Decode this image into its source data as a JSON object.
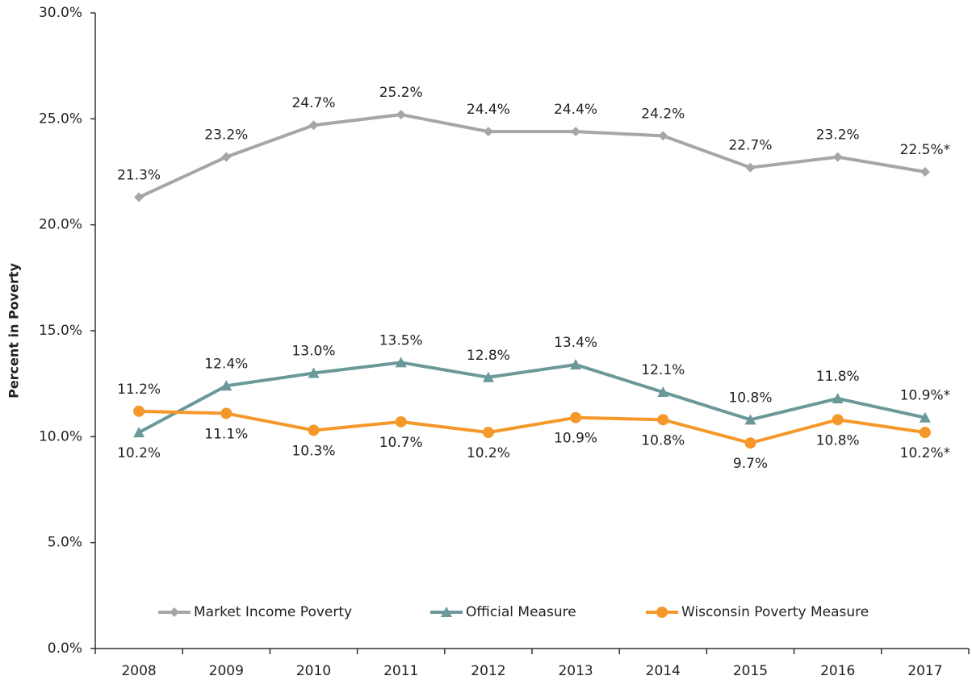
{
  "chart_data": {
    "type": "line",
    "y_label": "Percent in Poverty",
    "categories": [
      "2008",
      "2009",
      "2010",
      "2011",
      "2012",
      "2013",
      "2014",
      "2015",
      "2016",
      "2017"
    ],
    "ylim": [
      0,
      30
    ],
    "yticks": [
      {
        "value": 0,
        "label": "0.0%"
      },
      {
        "value": 5,
        "label": "5.0%"
      },
      {
        "value": 10,
        "label": "10.0%"
      },
      {
        "value": 15,
        "label": "15.0%"
      },
      {
        "value": 20,
        "label": "20.0%"
      },
      {
        "value": 25,
        "label": "25.0%"
      },
      {
        "value": 30,
        "label": "30.0%"
      }
    ],
    "legend": "bottom",
    "series": [
      {
        "name": "Market Income Poverty",
        "color": "#a6a6a6",
        "marker": "diamond",
        "values": [
          21.3,
          23.2,
          24.7,
          25.2,
          24.4,
          24.4,
          24.2,
          22.7,
          23.2,
          22.5
        ],
        "value_labels": [
          "21.3%",
          "23.2%",
          "24.7%",
          "25.2%",
          "24.4%",
          "24.4%",
          "24.2%",
          "22.7%",
          "23.2%",
          "22.5%*"
        ]
      },
      {
        "name": "Official Measure",
        "color": "#6b9999",
        "marker": "triangle",
        "values": [
          10.2,
          12.4,
          13.0,
          13.5,
          12.8,
          13.4,
          12.1,
          10.8,
          11.8,
          10.9
        ],
        "value_labels": [
          "10.2%",
          "12.4%",
          "13.0%",
          "13.5%",
          "12.8%",
          "13.4%",
          "12.1%",
          "10.8%",
          "11.8%",
          "10.9%*"
        ]
      },
      {
        "name": "Wisconsin Poverty Measure",
        "color": "#f5982a",
        "marker": "circle",
        "values": [
          11.2,
          11.1,
          10.3,
          10.7,
          10.2,
          10.9,
          10.8,
          9.7,
          10.8,
          10.2
        ],
        "value_labels": [
          "11.2%",
          "11.1%",
          "10.3%",
          "10.7%",
          "10.2%",
          "10.9%",
          "10.8%",
          "9.7%",
          "10.8%",
          "10.2%*"
        ]
      }
    ]
  }
}
